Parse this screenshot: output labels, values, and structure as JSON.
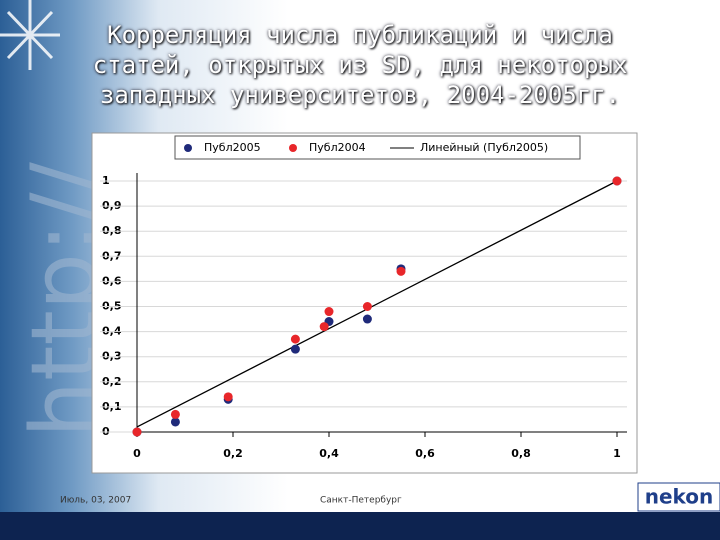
{
  "watermark": "http://",
  "title_lines": [
    "Корреляция числа публикаций и числа",
    "статей, открытых из SD, для  некоторых",
    "западных университетов, 2004-2005гг."
  ],
  "footer": {
    "date": "Июль, 03, 2007",
    "city": "Санкт-Петербург",
    "logo": "nekon"
  },
  "chart_data": {
    "type": "scatter",
    "series": [
      {
        "name": "Публ2005",
        "color": "#1f2a7a",
        "x": [
          0,
          0.08,
          0.19,
          0.33,
          0.4,
          0.48,
          0.55,
          1
        ],
        "values": [
          0,
          0.04,
          0.13,
          0.33,
          0.44,
          0.45,
          0.65,
          1
        ]
      },
      {
        "name": "Публ2004",
        "color": "#e8262a",
        "x": [
          0,
          0.08,
          0.19,
          0.33,
          0.39,
          0.4,
          0.48,
          0.55,
          1
        ],
        "values": [
          0,
          0.07,
          0.14,
          0.37,
          0.42,
          0.48,
          0.5,
          0.64,
          1
        ]
      }
    ],
    "trendline": {
      "name": "Линейный (Публ2005)",
      "color": "#000000",
      "x": [
        0,
        1
      ],
      "values": [
        0.02,
        1
      ]
    },
    "xlim": [
      0,
      1
    ],
    "ylim": [
      0,
      1
    ],
    "xticks": [
      0,
      {
        "value": 0.2,
        "label": "0,2"
      },
      {
        "value": 0.4,
        "label": "0,4"
      },
      {
        "value": 0.6,
        "label": "0,6"
      },
      {
        "value": 0.8,
        "label": "0,8"
      },
      1
    ],
    "yticks": [
      0,
      {
        "value": 0.1,
        "label": "0,1"
      },
      {
        "value": 0.2,
        "label": "0,2"
      },
      {
        "value": 0.3,
        "label": "0,3"
      },
      {
        "value": 0.4,
        "label": "0,4"
      },
      {
        "value": 0.5,
        "label": "0,5"
      },
      {
        "value": 0.6,
        "label": "0,6"
      },
      {
        "value": 0.7,
        "label": "0,7"
      },
      {
        "value": 0.8,
        "label": "0,8"
      },
      {
        "value": 0.9,
        "label": "0,9"
      },
      1
    ],
    "grid": true,
    "legend": "top"
  }
}
